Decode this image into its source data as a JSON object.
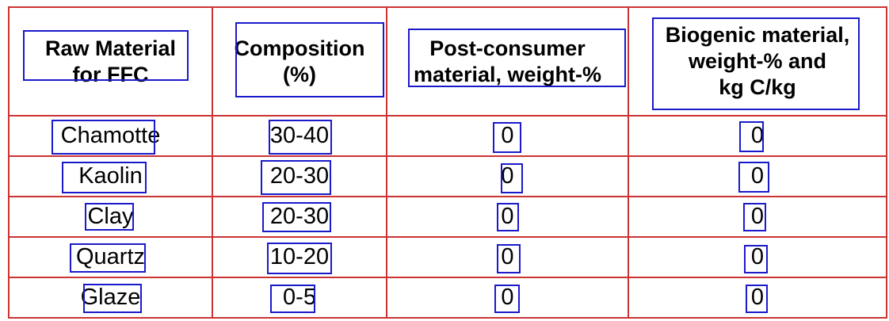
{
  "table": {
    "headers": [
      "Raw Material\nfor FFC",
      "Composition\n(%)",
      "Post-consumer\nmaterial, weight-%",
      "Biogenic material,\nweight-% and\nkg C/kg"
    ],
    "rows": [
      [
        "Chamotte",
        "30-40",
        "0",
        "0"
      ],
      [
        "Kaolin",
        "20-30",
        "0",
        "0"
      ],
      [
        "Clay",
        "20-30",
        "0",
        "0"
      ],
      [
        "Quartz",
        "10-20",
        "0",
        "0"
      ],
      [
        "Glaze",
        "0-5",
        "0",
        "0"
      ]
    ]
  },
  "colors": {
    "grid": "#cc3333",
    "annotation_box": "#1a1acc"
  }
}
